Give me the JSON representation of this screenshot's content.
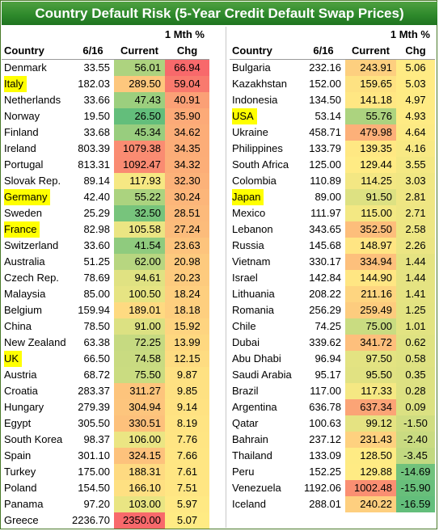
{
  "title": "Country Default Risk (5-Year Credit Default Swap Prices)",
  "headers": {
    "chg_top": "1 Mth %",
    "country": "Country",
    "prev": "6/16",
    "current": "Current",
    "chg": "Chg"
  },
  "highlight_color": "#ffff00",
  "left_rows": [
    {
      "country": "Denmark",
      "prev": "33.55",
      "current": "56.01",
      "chg": "66.94",
      "hl": false
    },
    {
      "country": "Italy",
      "prev": "182.03",
      "current": "289.50",
      "chg": "59.04",
      "hl": true
    },
    {
      "country": "Netherlands",
      "prev": "33.66",
      "current": "47.43",
      "chg": "40.91",
      "hl": false
    },
    {
      "country": "Norway",
      "prev": "19.50",
      "current": "26.50",
      "chg": "35.90",
      "hl": false
    },
    {
      "country": "Finland",
      "prev": "33.68",
      "current": "45.34",
      "chg": "34.62",
      "hl": false
    },
    {
      "country": "Ireland",
      "prev": "803.39",
      "current": "1079.38",
      "chg": "34.35",
      "hl": false
    },
    {
      "country": "Portugal",
      "prev": "813.31",
      "current": "1092.47",
      "chg": "34.32",
      "hl": false
    },
    {
      "country": "Slovak Rep.",
      "prev": "89.14",
      "current": "117.93",
      "chg": "32.30",
      "hl": false
    },
    {
      "country": "Germany",
      "prev": "42.40",
      "current": "55.22",
      "chg": "30.24",
      "hl": true
    },
    {
      "country": "Sweden",
      "prev": "25.29",
      "current": "32.50",
      "chg": "28.51",
      "hl": false
    },
    {
      "country": "France",
      "prev": "82.98",
      "current": "105.58",
      "chg": "27.24",
      "hl": true
    },
    {
      "country": "Switzerland",
      "prev": "33.60",
      "current": "41.54",
      "chg": "23.63",
      "hl": false
    },
    {
      "country": "Australia",
      "prev": "51.25",
      "current": "62.00",
      "chg": "20.98",
      "hl": false
    },
    {
      "country": "Czech Rep.",
      "prev": "78.69",
      "current": "94.61",
      "chg": "20.23",
      "hl": false
    },
    {
      "country": "Malaysia",
      "prev": "85.00",
      "current": "100.50",
      "chg": "18.24",
      "hl": false
    },
    {
      "country": "Belgium",
      "prev": "159.94",
      "current": "189.01",
      "chg": "18.18",
      "hl": false
    },
    {
      "country": "China",
      "prev": "78.50",
      "current": "91.00",
      "chg": "15.92",
      "hl": false
    },
    {
      "country": "New Zealand",
      "prev": "63.38",
      "current": "72.25",
      "chg": "13.99",
      "hl": false
    },
    {
      "country": "UK",
      "prev": "66.50",
      "current": "74.58",
      "chg": "12.15",
      "hl": true
    },
    {
      "country": "Austria",
      "prev": "68.72",
      "current": "75.50",
      "chg": "9.87",
      "hl": false
    },
    {
      "country": "Croatia",
      "prev": "283.37",
      "current": "311.27",
      "chg": "9.85",
      "hl": false
    },
    {
      "country": "Hungary",
      "prev": "279.39",
      "current": "304.94",
      "chg": "9.14",
      "hl": false
    },
    {
      "country": "Egypt",
      "prev": "305.50",
      "current": "330.51",
      "chg": "8.19",
      "hl": false
    },
    {
      "country": "South Korea",
      "prev": "98.37",
      "current": "106.00",
      "chg": "7.76",
      "hl": false
    },
    {
      "country": "Spain",
      "prev": "301.10",
      "current": "324.15",
      "chg": "7.66",
      "hl": false
    },
    {
      "country": "Turkey",
      "prev": "175.00",
      "current": "188.31",
      "chg": "7.61",
      "hl": false
    },
    {
      "country": "Poland",
      "prev": "154.50",
      "current": "166.10",
      "chg": "7.51",
      "hl": false
    },
    {
      "country": "Panama",
      "prev": "97.20",
      "current": "103.00",
      "chg": "5.97",
      "hl": false
    },
    {
      "country": "Greece",
      "prev": "2236.70",
      "current": "2350.00",
      "chg": "5.07",
      "hl": false
    }
  ],
  "right_rows": [
    {
      "country": "Bulgaria",
      "prev": "232.16",
      "current": "243.91",
      "chg": "5.06",
      "hl": false
    },
    {
      "country": "Kazakhstan",
      "prev": "152.00",
      "current": "159.65",
      "chg": "5.03",
      "hl": false
    },
    {
      "country": "Indonesia",
      "prev": "134.50",
      "current": "141.18",
      "chg": "4.97",
      "hl": false
    },
    {
      "country": "USA",
      "prev": "53.14",
      "current": "55.76",
      "chg": "4.93",
      "hl": true
    },
    {
      "country": "Ukraine",
      "prev": "458.71",
      "current": "479.98",
      "chg": "4.64",
      "hl": false
    },
    {
      "country": "Philippines",
      "prev": "133.79",
      "current": "139.35",
      "chg": "4.16",
      "hl": false
    },
    {
      "country": "South Africa",
      "prev": "125.00",
      "current": "129.44",
      "chg": "3.55",
      "hl": false
    },
    {
      "country": "Colombia",
      "prev": "110.89",
      "current": "114.25",
      "chg": "3.03",
      "hl": false
    },
    {
      "country": "Japan",
      "prev": "89.00",
      "current": "91.50",
      "chg": "2.81",
      "hl": true
    },
    {
      "country": "Mexico",
      "prev": "111.97",
      "current": "115.00",
      "chg": "2.71",
      "hl": false
    },
    {
      "country": "Lebanon",
      "prev": "343.65",
      "current": "352.50",
      "chg": "2.58",
      "hl": false
    },
    {
      "country": "Russia",
      "prev": "145.68",
      "current": "148.97",
      "chg": "2.26",
      "hl": false
    },
    {
      "country": "Vietnam",
      "prev": "330.17",
      "current": "334.94",
      "chg": "1.44",
      "hl": false
    },
    {
      "country": "Israel",
      "prev": "142.84",
      "current": "144.90",
      "chg": "1.44",
      "hl": false
    },
    {
      "country": "Lithuania",
      "prev": "208.22",
      "current": "211.16",
      "chg": "1.41",
      "hl": false
    },
    {
      "country": "Romania",
      "prev": "256.29",
      "current": "259.49",
      "chg": "1.25",
      "hl": false
    },
    {
      "country": "Chile",
      "prev": "74.25",
      "current": "75.00",
      "chg": "1.01",
      "hl": false
    },
    {
      "country": "Dubai",
      "prev": "339.62",
      "current": "341.72",
      "chg": "0.62",
      "hl": false
    },
    {
      "country": "Abu Dhabi",
      "prev": "96.94",
      "current": "97.50",
      "chg": "0.58",
      "hl": false
    },
    {
      "country": "Saudi Arabia",
      "prev": "95.17",
      "current": "95.50",
      "chg": "0.35",
      "hl": false
    },
    {
      "country": "Brazil",
      "prev": "117.00",
      "current": "117.33",
      "chg": "0.28",
      "hl": false
    },
    {
      "country": "Argentina",
      "prev": "636.78",
      "current": "637.34",
      "chg": "0.09",
      "hl": false
    },
    {
      "country": "Qatar",
      "prev": "100.63",
      "current": "99.12",
      "chg": "-1.50",
      "hl": false
    },
    {
      "country": "Bahrain",
      "prev": "237.12",
      "current": "231.43",
      "chg": "-2.40",
      "hl": false
    },
    {
      "country": "Thailand",
      "prev": "133.09",
      "current": "128.50",
      "chg": "-3.45",
      "hl": false
    },
    {
      "country": "Peru",
      "prev": "152.25",
      "current": "129.88",
      "chg": "-14.69",
      "hl": false
    },
    {
      "country": "Venezuela",
      "prev": "1192.06",
      "current": "1002.48",
      "chg": "-15.90",
      "hl": false
    },
    {
      "country": "Iceland",
      "prev": "288.01",
      "current": "240.22",
      "chg": "-16.59",
      "hl": false
    }
  ]
}
